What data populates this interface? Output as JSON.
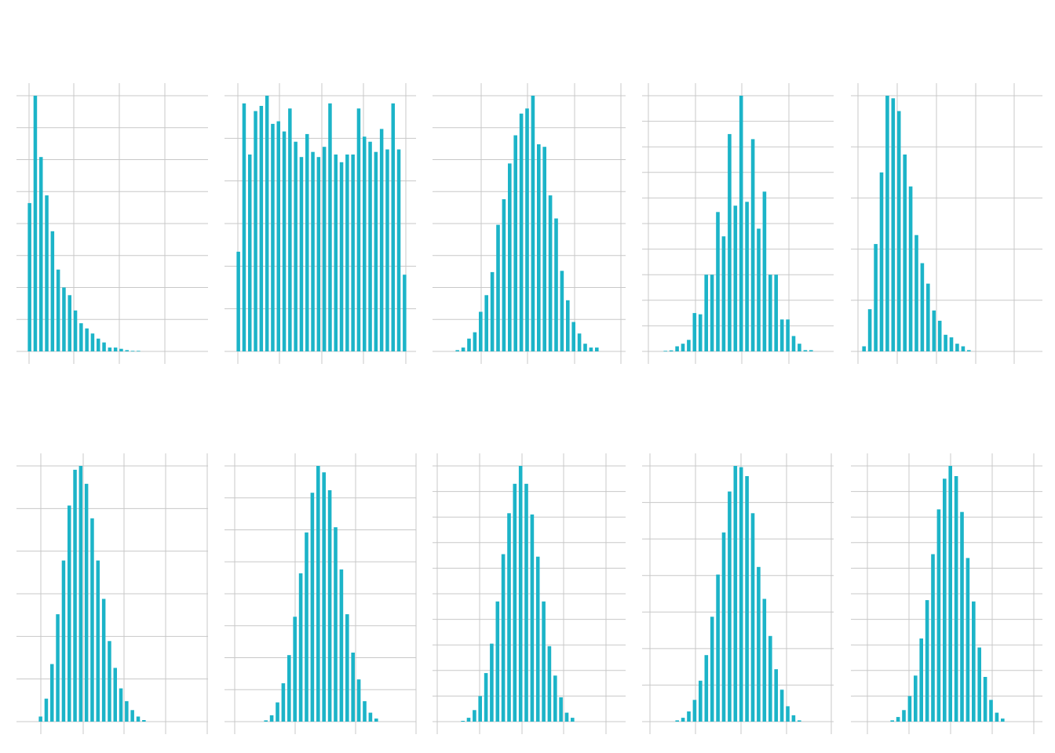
{
  "figure": {
    "bar_color": "#1cb4c8",
    "grid_color": "#c8c8c8",
    "background": "#ffffff"
  },
  "chart_data": [
    {
      "type": "bar",
      "title": "",
      "xlabel": "",
      "ylabel": "",
      "grid": true,
      "ylim": [
        0,
        1
      ],
      "values": [
        0.58,
        1.0,
        0.76,
        0.61,
        0.47,
        0.32,
        0.25,
        0.22,
        0.16,
        0.11,
        0.09,
        0.07,
        0.05,
        0.035,
        0.015,
        0.015,
        0.01,
        0.005,
        0.002,
        0.002
      ]
    },
    {
      "type": "bar",
      "title": "",
      "xlabel": "",
      "ylabel": "",
      "grid": true,
      "ylim": [
        0,
        1
      ],
      "values": [
        0.39,
        0.97,
        0.77,
        0.94,
        0.96,
        1.0,
        0.89,
        0.9,
        0.86,
        0.95,
        0.82,
        0.76,
        0.85,
        0.78,
        0.76,
        0.8,
        0.97,
        0.77,
        0.74,
        0.77,
        0.77,
        0.95,
        0.84,
        0.82,
        0.78,
        0.87,
        0.79,
        0.97,
        0.79,
        0.3
      ]
    },
    {
      "type": "bar",
      "title": "",
      "xlabel": "",
      "ylabel": "",
      "grid": true,
      "ylim": [
        0,
        1
      ],
      "values": [
        0.005,
        0.015,
        0.05,
        0.075,
        0.155,
        0.22,
        0.31,
        0.495,
        0.595,
        0.735,
        0.845,
        0.93,
        0.95,
        1.0,
        0.81,
        0.8,
        0.61,
        0.52,
        0.315,
        0.2,
        0.115,
        0.07,
        0.03,
        0.015,
        0.015
      ]
    },
    {
      "type": "bar",
      "title": "",
      "xlabel": "",
      "ylabel": "",
      "grid": true,
      "ylim": [
        0,
        1
      ],
      "values": [
        0.002,
        0.004,
        0.02,
        0.03,
        0.045,
        0.15,
        0.145,
        0.3,
        0.3,
        0.545,
        0.45,
        0.85,
        0.57,
        1.0,
        0.585,
        0.83,
        0.48,
        0.625,
        0.3,
        0.3,
        0.125,
        0.125,
        0.06,
        0.03,
        0.005,
        0.005
      ]
    },
    {
      "type": "bar",
      "title": "",
      "xlabel": "",
      "ylabel": "",
      "grid": true,
      "ylim": [
        0,
        1
      ],
      "values": [
        0.02,
        0.165,
        0.42,
        0.7,
        1.0,
        0.99,
        0.94,
        0.77,
        0.645,
        0.455,
        0.345,
        0.265,
        0.16,
        0.12,
        0.065,
        0.055,
        0.03,
        0.02,
        0.005
      ]
    },
    {
      "type": "bar",
      "title": "",
      "xlabel": "",
      "ylabel": "",
      "grid": true,
      "ylim": [
        0,
        1
      ],
      "values": [
        0.02,
        0.09,
        0.225,
        0.42,
        0.63,
        0.845,
        0.985,
        1.0,
        0.93,
        0.795,
        0.63,
        0.48,
        0.315,
        0.21,
        0.13,
        0.08,
        0.045,
        0.02,
        0.006
      ]
    },
    {
      "type": "bar",
      "title": "",
      "xlabel": "",
      "ylabel": "",
      "grid": true,
      "ylim": [
        0,
        1
      ],
      "values": [
        0.005,
        0.025,
        0.075,
        0.15,
        0.26,
        0.41,
        0.58,
        0.74,
        0.895,
        1.0,
        0.975,
        0.905,
        0.76,
        0.595,
        0.42,
        0.27,
        0.165,
        0.08,
        0.035,
        0.012
      ]
    },
    {
      "type": "bar",
      "title": "",
      "xlabel": "",
      "ylabel": "",
      "grid": true,
      "ylim": [
        0,
        1
      ],
      "values": [
        0.003,
        0.015,
        0.045,
        0.1,
        0.19,
        0.305,
        0.47,
        0.655,
        0.815,
        0.93,
        1.0,
        0.93,
        0.81,
        0.645,
        0.47,
        0.295,
        0.18,
        0.095,
        0.035,
        0.015
      ]
    },
    {
      "type": "bar",
      "title": "",
      "xlabel": "",
      "ylabel": "",
      "grid": true,
      "ylim": [
        0,
        1
      ],
      "values": [
        0.005,
        0.015,
        0.04,
        0.085,
        0.16,
        0.26,
        0.41,
        0.575,
        0.74,
        0.9,
        1.0,
        0.995,
        0.96,
        0.815,
        0.605,
        0.48,
        0.335,
        0.205,
        0.125,
        0.06,
        0.025,
        0.005
      ]
    },
    {
      "type": "bar",
      "title": "",
      "xlabel": "",
      "ylabel": "",
      "grid": true,
      "ylim": [
        0,
        1
      ],
      "values": [
        0.005,
        0.018,
        0.045,
        0.1,
        0.18,
        0.325,
        0.475,
        0.655,
        0.83,
        0.95,
        1.0,
        0.96,
        0.82,
        0.64,
        0.47,
        0.29,
        0.175,
        0.085,
        0.035,
        0.012
      ]
    }
  ]
}
